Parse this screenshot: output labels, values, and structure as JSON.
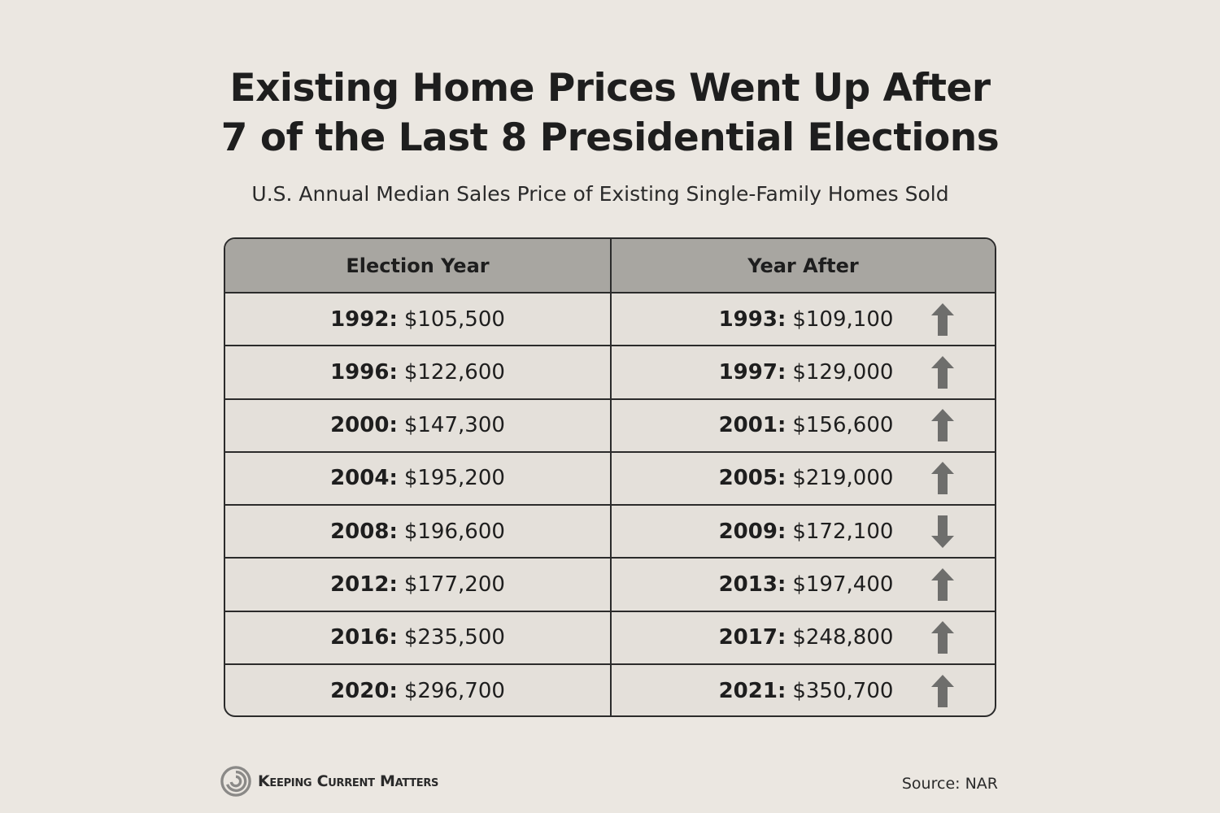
{
  "title_line1": "Existing Home Prices Went Up After",
  "title_line2": "7 of the Last 8 Presidential Elections",
  "subtitle": "U.S. Annual Median Sales Price of Existing Single-Family Homes Sold",
  "chart_data": {
    "type": "table",
    "title": "Existing Home Prices Went Up After 7 of the Last 8 Presidential Elections",
    "subtitle": "U.S. Annual Median Sales Price of Existing Single-Family Homes Sold",
    "columns": [
      "Election Year",
      "Year After"
    ],
    "rows": [
      {
        "election_year": "1992:",
        "election_price": "$105,500",
        "after_year": "1993:",
        "after_price": "$109,100",
        "direction": "up"
      },
      {
        "election_year": "1996:",
        "election_price": "$122,600",
        "after_year": "1997:",
        "after_price": "$129,000",
        "direction": "up"
      },
      {
        "election_year": "2000:",
        "election_price": "$147,300",
        "after_year": "2001:",
        "after_price": "$156,600",
        "direction": "up"
      },
      {
        "election_year": "2004:",
        "election_price": "$195,200",
        "after_year": "2005:",
        "after_price": "$219,000",
        "direction": "up"
      },
      {
        "election_year": "2008:",
        "election_price": "$196,600",
        "after_year": "2009:",
        "after_price": "$172,100",
        "direction": "down"
      },
      {
        "election_year": "2012:",
        "election_price": "$177,200",
        "after_year": "2013:",
        "after_price": "$197,400",
        "direction": "up"
      },
      {
        "election_year": "2016:",
        "election_price": "$235,500",
        "after_year": "2017:",
        "after_price": "$248,800",
        "direction": "up"
      },
      {
        "election_year": "2020:",
        "election_price": "$296,700",
        "after_year": "2021:",
        "after_price": "$350,700",
        "direction": "up"
      }
    ]
  },
  "footer": {
    "brand": "Keeping Current Matters",
    "source": "Source: NAR"
  },
  "colors": {
    "background": "#ebe7e1",
    "header_fill": "#a8a6a1",
    "arrow": "#6e6e6c"
  }
}
